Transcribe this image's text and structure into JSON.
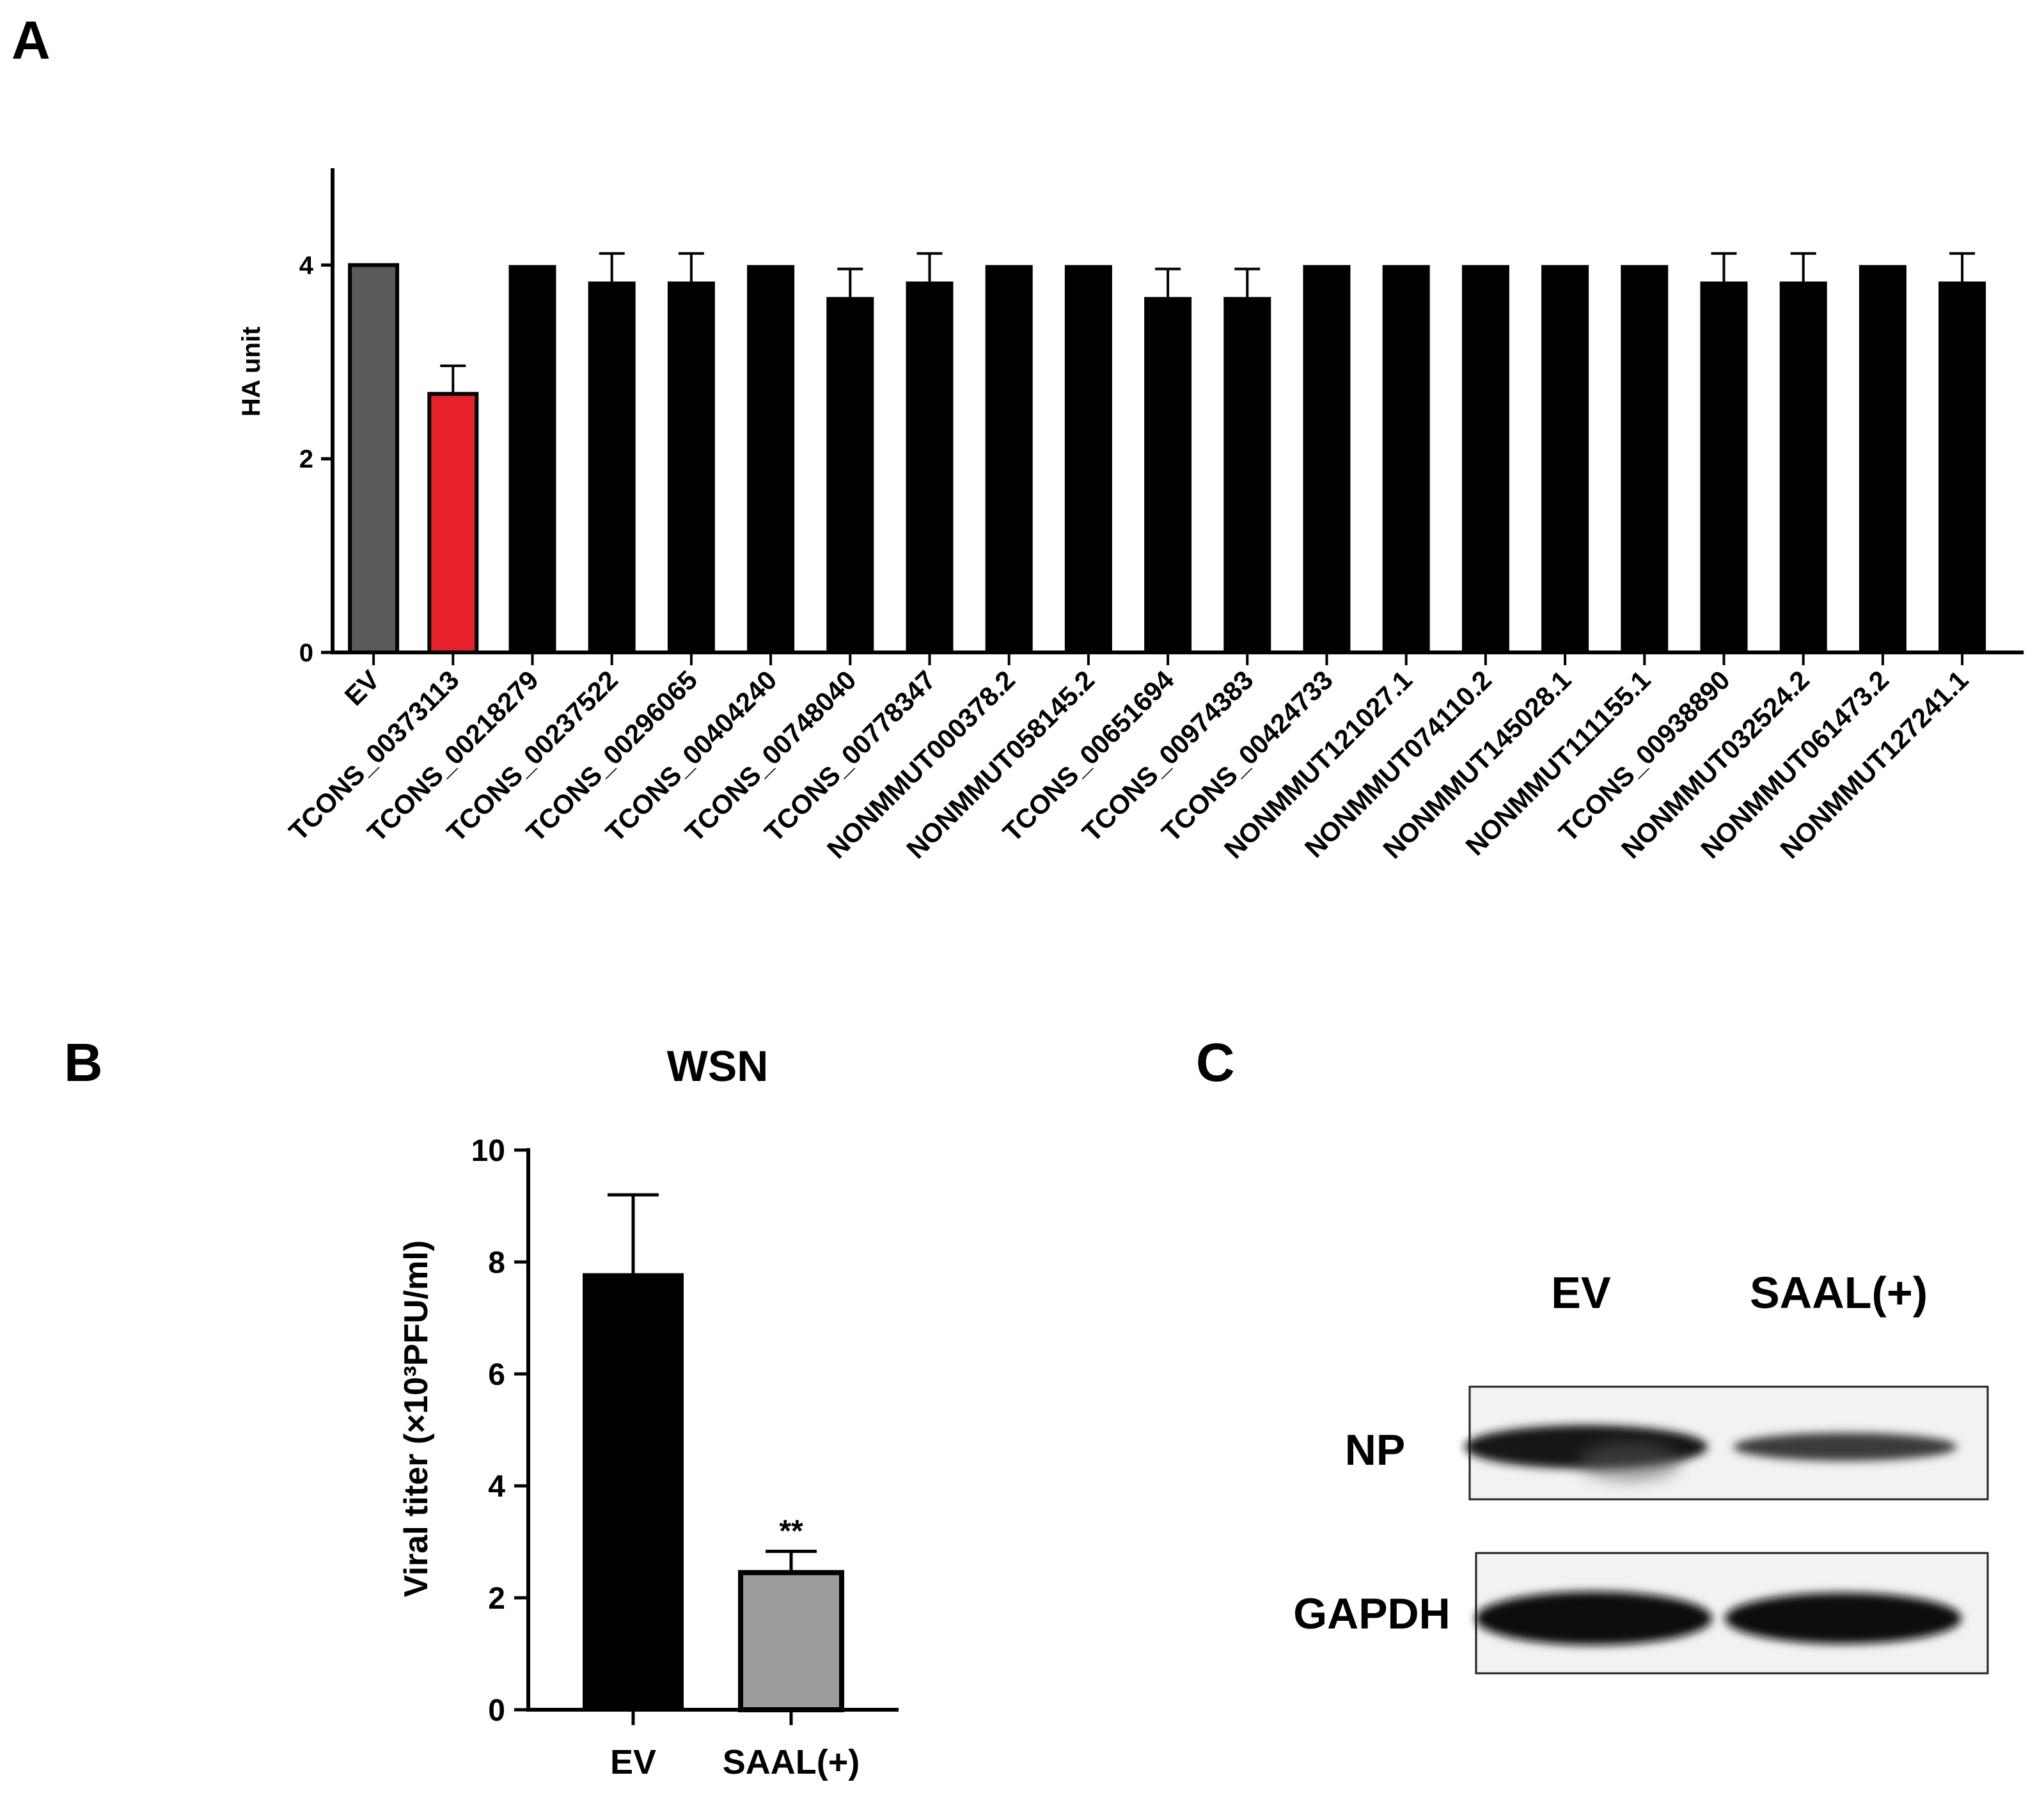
{
  "panels": {
    "a": "A",
    "b": "B",
    "c": "C"
  },
  "chart_data": [
    {
      "type": "bar",
      "panel": "A",
      "title": "",
      "ylabel": "HA unit",
      "xlabel": "",
      "ylim": [
        0,
        5
      ],
      "yticks": [
        0,
        2,
        4
      ],
      "categories": [
        "EV",
        "TCONS_00373113",
        "TCONS_00218279",
        "TCONS_00237522",
        "TCONS_00296065",
        "TCONS_00404240",
        "TCONS_00748040",
        "TCONS_00778347",
        "NONMMUT000378.2",
        "NONMMUT058145.2",
        "TCONS_00651694",
        "TCONS_00974383",
        "TCONS_00424733",
        "NONMMUT121027.1",
        "NONMMUT074110.2",
        "NONMMUT145028.1",
        "NONMMUT111155.1",
        "TCONS_00938890",
        "NONMMUT032524.2",
        "NONMMUT061473.2",
        "NONMMUT127241.1"
      ],
      "values": [
        4,
        2.67,
        4,
        3.83,
        3.83,
        4,
        3.67,
        3.83,
        4,
        4,
        3.67,
        3.67,
        4,
        4,
        4,
        4,
        4,
        3.83,
        3.83,
        4,
        3.83
      ],
      "errors": [
        0,
        0.29,
        0,
        0.29,
        0.29,
        0,
        0.29,
        0.29,
        0,
        0,
        0.29,
        0.29,
        0,
        0,
        0,
        0,
        0,
        0.29,
        0.29,
        0,
        0.29
      ],
      "colors": [
        "#5a5a5a",
        "#e8202a",
        "#000000",
        "#000000",
        "#000000",
        "#000000",
        "#000000",
        "#000000",
        "#000000",
        "#000000",
        "#000000",
        "#000000",
        "#000000",
        "#000000",
        "#000000",
        "#000000",
        "#000000",
        "#000000",
        "#000000",
        "#000000",
        "#000000"
      ],
      "grid": false
    },
    {
      "type": "bar",
      "panel": "B",
      "title": "WSN",
      "ylabel": "Viral titer (×10³PFU/ml)",
      "xlabel": "",
      "ylim": [
        0,
        10
      ],
      "yticks": [
        0,
        2,
        4,
        6,
        8,
        10
      ],
      "categories": [
        "EV",
        "SAAL(+)"
      ],
      "values": [
        7.8,
        2.45
      ],
      "errors": [
        1.4,
        0.38
      ],
      "colors": [
        "#000000",
        "#9b9b9b"
      ],
      "annotations": [
        "",
        "**"
      ],
      "grid": false
    }
  ],
  "blot": {
    "columns": [
      "EV",
      "SAAL(+)"
    ],
    "rows": [
      "NP",
      "GAPDH"
    ]
  }
}
